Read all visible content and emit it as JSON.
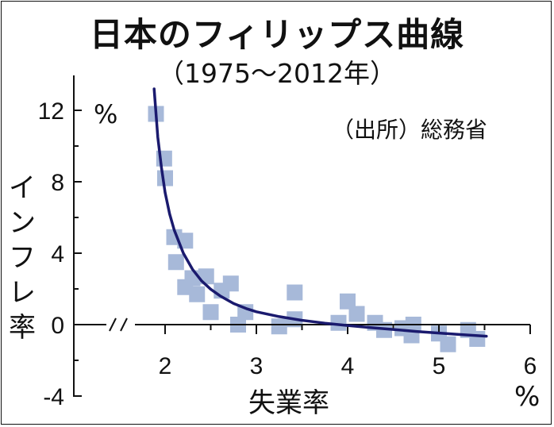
{
  "title": "日本のフィリップス曲線",
  "subtitle": "（1975〜2012年）",
  "source": "（出所）総務省",
  "chart_data": {
    "type": "scatter",
    "title": "日本のフィリップス曲線",
    "subtitle": "（1975〜2012年）",
    "xlabel": "失業率",
    "ylabel": "インフレ率",
    "x_unit": "%",
    "y_unit": "%",
    "xlim": [
      1.0,
      6.0
    ],
    "ylim": [
      -4,
      13.5
    ],
    "x_ticks": [
      "2",
      "3",
      "4",
      "5",
      "6"
    ],
    "y_ticks": [
      "12",
      "8",
      "4",
      "0",
      "-4"
    ],
    "x_axis_broken": true,
    "grid": false,
    "legend": "none",
    "series": [
      {
        "type": "scatter",
        "color": "#a7b9d9",
        "points": [
          [
            1.9,
            11.8
          ],
          [
            1.99,
            9.3
          ],
          [
            2.0,
            8.2
          ],
          [
            2.1,
            4.9
          ],
          [
            2.12,
            3.5
          ],
          [
            2.22,
            4.7
          ],
          [
            2.22,
            2.1
          ],
          [
            2.3,
            2.6
          ],
          [
            2.35,
            1.7
          ],
          [
            2.45,
            2.7
          ],
          [
            2.5,
            0.7
          ],
          [
            2.62,
            1.9
          ],
          [
            2.72,
            2.3
          ],
          [
            2.8,
            0.0
          ],
          [
            2.88,
            0.7
          ],
          [
            3.25,
            -0.1
          ],
          [
            3.42,
            1.8
          ],
          [
            3.42,
            0.3
          ],
          [
            3.9,
            0.1
          ],
          [
            4.0,
            1.3
          ],
          [
            4.1,
            0.6
          ],
          [
            4.3,
            0.1
          ],
          [
            4.4,
            -0.3
          ],
          [
            4.6,
            -0.2
          ],
          [
            4.7,
            -0.6
          ],
          [
            4.72,
            0.0
          ],
          [
            5.0,
            -0.5
          ],
          [
            5.1,
            -1.1
          ],
          [
            5.32,
            -0.3
          ],
          [
            5.42,
            -0.8
          ]
        ]
      },
      {
        "type": "line",
        "color": "#1a1a6e",
        "points": [
          [
            1.88,
            13.2
          ],
          [
            1.92,
            10.5
          ],
          [
            1.96,
            8.8
          ],
          [
            2.0,
            7.4
          ],
          [
            2.05,
            6.2
          ],
          [
            2.1,
            5.3
          ],
          [
            2.2,
            4.0
          ],
          [
            2.3,
            3.1
          ],
          [
            2.4,
            2.45
          ],
          [
            2.5,
            1.98
          ],
          [
            2.6,
            1.62
          ],
          [
            2.75,
            1.18
          ],
          [
            2.9,
            0.88
          ],
          [
            3.0,
            0.72
          ],
          [
            3.25,
            0.45
          ],
          [
            3.5,
            0.24
          ],
          [
            3.75,
            0.08
          ],
          [
            4.0,
            -0.05
          ],
          [
            4.25,
            -0.17
          ],
          [
            4.5,
            -0.27
          ],
          [
            4.75,
            -0.38
          ],
          [
            5.0,
            -0.47
          ],
          [
            5.25,
            -0.56
          ],
          [
            5.52,
            -0.65
          ]
        ]
      }
    ]
  }
}
